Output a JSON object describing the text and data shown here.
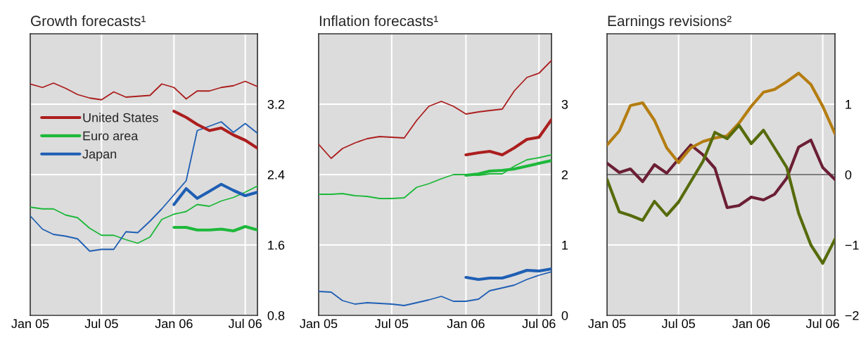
{
  "chart_data": [
    {
      "type": "line",
      "title": "Growth forecasts¹",
      "x": [
        "2005-01",
        "2005-02",
        "2005-03",
        "2005-04",
        "2005-05",
        "2005-06",
        "2005-07",
        "2005-08",
        "2005-09",
        "2005-10",
        "2005-11",
        "2005-12",
        "2006-01",
        "2006-02",
        "2006-03",
        "2006-04",
        "2006-05",
        "2006-06",
        "2006-07",
        "2006-08"
      ],
      "series": [
        {
          "color": "#ac1e1e",
          "values": [
            3.43,
            3.39,
            3.44,
            3.38,
            3.31,
            3.27,
            3.25,
            3.34,
            3.28,
            3.29,
            3.3,
            3.43,
            3.39,
            3.26,
            3.35,
            3.35,
            3.39,
            3.41,
            3.46,
            3.4
          ]
        },
        {
          "color": "#1db83a",
          "values": [
            2.03,
            2.01,
            2.01,
            1.94,
            1.91,
            1.79,
            1.71,
            1.71,
            1.66,
            1.62,
            1.69,
            1.89,
            1.95,
            1.98,
            2.06,
            2.04,
            2.1,
            2.14,
            2.2,
            2.27
          ]
        },
        {
          "color": "#1f5fb4",
          "values": [
            1.93,
            1.78,
            1.72,
            1.7,
            1.67,
            1.53,
            1.55,
            1.55,
            1.75,
            1.74,
            1.87,
            2.01,
            2.17,
            2.33,
            2.9,
            2.95,
            3.0,
            2.88,
            2.98,
            2.87
          ]
        },
        {
          "name": "United States",
          "color": "#ac1e1e",
          "x": [
            "2006-01",
            "2006-02",
            "2006-03",
            "2006-04",
            "2006-05",
            "2006-06",
            "2006-07",
            "2006-08"
          ],
          "values": [
            3.12,
            3.05,
            2.97,
            2.9,
            2.93,
            2.85,
            2.79,
            2.7
          ]
        },
        {
          "name": "Euro area",
          "color": "#1db83a",
          "x": [
            "2006-01",
            "2006-02",
            "2006-03",
            "2006-04",
            "2006-05",
            "2006-06",
            "2006-07",
            "2006-08"
          ],
          "values": [
            1.8,
            1.8,
            1.77,
            1.77,
            1.78,
            1.76,
            1.81,
            1.77
          ]
        },
        {
          "name": "Japan",
          "color": "#1f5fb4",
          "x": [
            "2006-01",
            "2006-02",
            "2006-03",
            "2006-04",
            "2006-05",
            "2006-06",
            "2006-07",
            "2006-08"
          ],
          "values": [
            2.06,
            2.24,
            2.13,
            2.21,
            2.29,
            2.22,
            2.16,
            2.2
          ]
        }
      ],
      "xlim": [
        "2005-01",
        "2006-08"
      ],
      "xticks": [
        {
          "value": "2005-01",
          "label": "Jan 05"
        },
        {
          "value": "2005-07",
          "label": "Jul 05"
        },
        {
          "value": "2006-01",
          "label": "Jan 06"
        },
        {
          "value": "2006-07",
          "label": "Jul 06"
        }
      ],
      "ylim": [
        0.8,
        4.0
      ],
      "yticks": [
        0.8,
        1.6,
        2.4,
        3.2
      ],
      "grid": true,
      "legend": "top left"
    },
    {
      "type": "line",
      "title": "Inflation forecasts¹",
      "x": [
        "2005-01",
        "2005-02",
        "2005-03",
        "2005-04",
        "2005-05",
        "2005-06",
        "2005-07",
        "2005-08",
        "2005-09",
        "2005-10",
        "2005-11",
        "2005-12",
        "2006-01",
        "2006-02",
        "2006-03",
        "2006-04",
        "2006-05",
        "2006-06",
        "2006-07",
        "2006-08"
      ],
      "series": [
        {
          "color": "#ac1e1e",
          "values": [
            2.43,
            2.23,
            2.37,
            2.45,
            2.51,
            2.54,
            2.53,
            2.52,
            2.77,
            2.97,
            3.04,
            2.97,
            2.86,
            2.89,
            2.91,
            2.93,
            3.19,
            3.38,
            3.44,
            3.62
          ]
        },
        {
          "color": "#1db83a",
          "values": [
            1.72,
            1.72,
            1.73,
            1.7,
            1.69,
            1.66,
            1.66,
            1.67,
            1.82,
            1.87,
            1.94,
            2.0,
            2.0,
            1.99,
            2.01,
            2.01,
            2.12,
            2.21,
            2.24,
            2.28
          ]
        },
        {
          "color": "#1f5fb4",
          "values": [
            0.34,
            0.33,
            0.21,
            0.16,
            0.18,
            0.17,
            0.16,
            0.14,
            0.18,
            0.22,
            0.27,
            0.2,
            0.2,
            0.23,
            0.35,
            0.39,
            0.43,
            0.51,
            0.57,
            0.62
          ]
        },
        {
          "color": "#ac1e1e",
          "x": [
            "2006-01",
            "2006-02",
            "2006-03",
            "2006-04",
            "2006-05",
            "2006-06",
            "2006-07",
            "2006-08"
          ],
          "values": [
            2.28,
            2.31,
            2.33,
            2.28,
            2.38,
            2.5,
            2.53,
            2.78
          ]
        },
        {
          "color": "#1db83a",
          "x": [
            "2006-01",
            "2006-02",
            "2006-03",
            "2006-04",
            "2006-05",
            "2006-06",
            "2006-07",
            "2006-08"
          ],
          "values": [
            1.99,
            2.01,
            2.05,
            2.06,
            2.08,
            2.12,
            2.16,
            2.2
          ]
        },
        {
          "color": "#1f5fb4",
          "x": [
            "2006-01",
            "2006-02",
            "2006-03",
            "2006-04",
            "2006-05",
            "2006-06",
            "2006-07",
            "2006-08"
          ],
          "values": [
            0.54,
            0.51,
            0.53,
            0.53,
            0.58,
            0.64,
            0.63,
            0.66
          ]
        }
      ],
      "xlim": [
        "2005-01",
        "2006-08"
      ],
      "xticks": [
        {
          "value": "2005-01",
          "label": "Jan 05"
        },
        {
          "value": "2005-07",
          "label": "Jul 05"
        },
        {
          "value": "2006-01",
          "label": "Jan 06"
        },
        {
          "value": "2006-07",
          "label": "Jul 06"
        }
      ],
      "ylim": [
        0,
        4
      ],
      "yticks": [
        0,
        1,
        2,
        3
      ],
      "grid": true
    },
    {
      "type": "line",
      "title": "Earnings revisions²",
      "x": [
        "2005-01",
        "2005-02",
        "2005-03",
        "2005-04",
        "2005-05",
        "2005-06",
        "2005-07",
        "2005-08",
        "2005-09",
        "2005-10",
        "2005-11",
        "2005-12",
        "2006-01",
        "2006-02",
        "2006-03",
        "2006-04",
        "2006-05",
        "2006-06",
        "2006-07",
        "2006-08"
      ],
      "series": [
        {
          "color": "#6b1f35",
          "values": [
            0.16,
            0.03,
            0.08,
            -0.1,
            0.14,
            0.02,
            0.22,
            0.42,
            0.28,
            0.09,
            -0.47,
            -0.44,
            -0.32,
            -0.36,
            -0.28,
            -0.05,
            0.39,
            0.49,
            0.1,
            -0.07
          ]
        },
        {
          "color": "#b47d10",
          "values": [
            0.42,
            0.62,
            0.98,
            1.02,
            0.77,
            0.38,
            0.17,
            0.38,
            0.47,
            0.52,
            0.55,
            0.73,
            0.97,
            1.17,
            1.21,
            1.32,
            1.44,
            1.28,
            0.97,
            0.58
          ]
        },
        {
          "color": "#566b0b",
          "values": [
            -0.07,
            -0.53,
            -0.58,
            -0.65,
            -0.38,
            -0.58,
            -0.39,
            -0.1,
            0.19,
            0.6,
            0.51,
            0.7,
            0.44,
            0.63,
            0.38,
            0.1,
            -0.55,
            -1.0,
            -1.26,
            -0.92
          ]
        }
      ],
      "xlim": [
        "2005-01",
        "2006-08"
      ],
      "xticks": [
        {
          "value": "2005-01",
          "label": "Jan 05"
        },
        {
          "value": "2005-07",
          "label": "Jul 05"
        },
        {
          "value": "2006-01",
          "label": "Jan 06"
        },
        {
          "value": "2006-07",
          "label": "Jul 06"
        }
      ],
      "ylim": [
        -2,
        2
      ],
      "yticks": [
        {
          "value": -2,
          "label": "−2"
        },
        {
          "value": -1,
          "label": "−1"
        },
        0,
        1
      ],
      "grid": true,
      "ref_lines": [
        {
          "axis": "y",
          "value": 0,
          "color": "#555555"
        }
      ]
    }
  ]
}
